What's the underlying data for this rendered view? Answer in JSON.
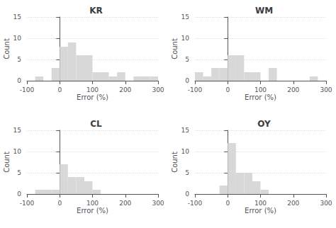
{
  "chart_data": [
    {
      "type": "histogram",
      "title": "KR",
      "bins": [
        -100,
        -75,
        -50,
        -25,
        0,
        25,
        50,
        75,
        100,
        125,
        150,
        175,
        200,
        225,
        250,
        275,
        300
      ],
      "values": [
        0,
        1,
        0,
        3,
        8,
        9,
        6,
        6,
        2,
        2,
        1,
        2,
        0,
        1,
        1,
        1
      ],
      "xlabel": "Error (%)",
      "ylabel": "Count",
      "xlim": [
        -100,
        300
      ],
      "ylim": [
        0,
        15
      ],
      "xticks": [
        -100,
        0,
        100,
        200,
        300
      ],
      "yticks": [
        0,
        5,
        10,
        15
      ],
      "color": "#d8d8d8",
      "grid": true
    },
    {
      "type": "histogram",
      "title": "WM",
      "bins": [
        -100,
        -75,
        -50,
        -25,
        0,
        25,
        50,
        75,
        100,
        125,
        150,
        175,
        200,
        225,
        250,
        275,
        300
      ],
      "values": [
        2,
        1,
        3,
        3,
        6,
        6,
        2,
        2,
        0,
        3,
        0,
        0,
        0,
        0,
        1,
        0
      ],
      "xlabel": "Error (%)",
      "ylabel": "Count",
      "xlim": [
        -100,
        300
      ],
      "ylim": [
        0,
        15
      ],
      "xticks": [
        -100,
        0,
        100,
        200,
        300
      ],
      "yticks": [
        0,
        5,
        10,
        15
      ],
      "color": "#d8d8d8",
      "grid": true
    },
    {
      "type": "histogram",
      "title": "CL",
      "bins": [
        -100,
        -75,
        -50,
        -25,
        0,
        25,
        50,
        75,
        100,
        125,
        150,
        175,
        200,
        225,
        250,
        275,
        300
      ],
      "values": [
        0,
        1,
        1,
        1,
        7,
        4,
        4,
        3,
        1,
        0,
        0,
        0,
        0,
        0,
        0,
        0
      ],
      "xlabel": "Error (%)",
      "ylabel": "Count",
      "xlim": [
        -100,
        300
      ],
      "ylim": [
        0,
        15
      ],
      "xticks": [
        -100,
        0,
        100,
        200,
        300
      ],
      "yticks": [
        0,
        5,
        10,
        15
      ],
      "color": "#d8d8d8",
      "grid": true
    },
    {
      "type": "histogram",
      "title": "OY",
      "bins": [
        -100,
        -75,
        -50,
        -25,
        0,
        25,
        50,
        75,
        100,
        125,
        150,
        175,
        200,
        225,
        250,
        275,
        300
      ],
      "values": [
        0,
        0,
        0,
        2,
        12,
        5,
        5,
        3,
        1,
        0,
        0,
        0,
        0,
        0,
        0,
        0
      ],
      "xlabel": "Error (%)",
      "ylabel": "Count",
      "xlim": [
        -100,
        300
      ],
      "ylim": [
        0,
        15
      ],
      "xticks": [
        -100,
        0,
        100,
        200,
        300
      ],
      "yticks": [
        0,
        5,
        10,
        15
      ],
      "color": "#d8d8d8",
      "grid": true
    }
  ]
}
